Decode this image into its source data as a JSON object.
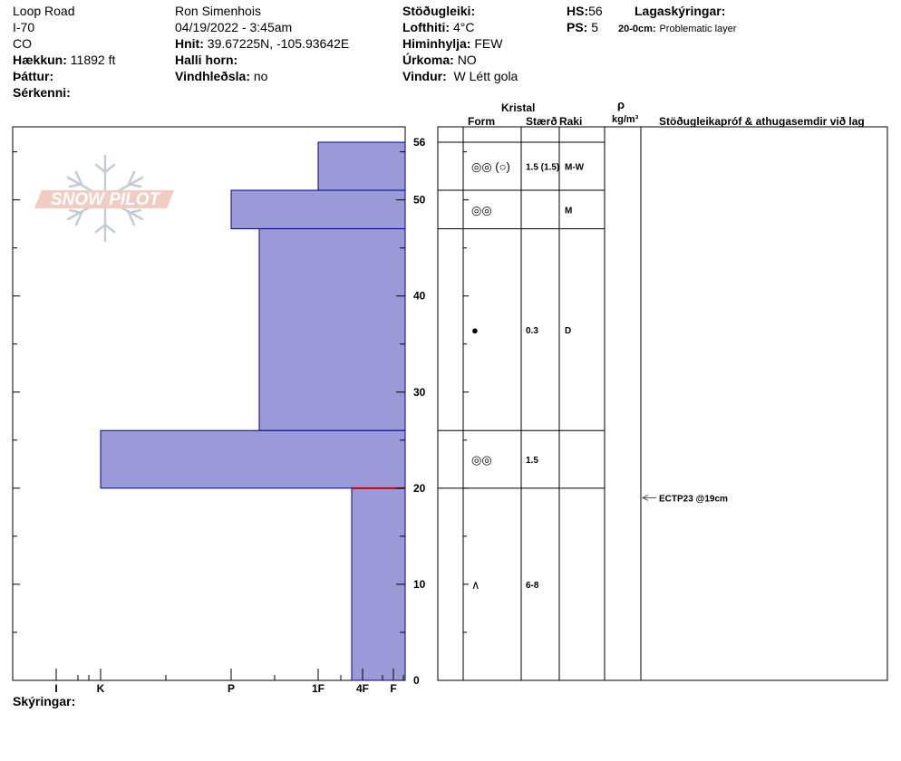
{
  "header": {
    "col1": {
      "location": "Loop Road",
      "road": "I-70",
      "state": "CO",
      "elevation_label": "Hækkun:",
      "elevation_value": "11892 ft",
      "aspect_label": "Þáttur:",
      "features_label": "Sérkenni:"
    },
    "col2": {
      "observer": "Ron Simenhois",
      "datetime": "04/19/2022 - 3:45am",
      "coords_label": "Hnit:",
      "coords_value": "39.67225N, -105.93642E",
      "slope_label": "Halli horn:",
      "wind_loading_label": "Vindhleðsla:",
      "wind_loading_value": "no"
    },
    "col3": {
      "stability_label": "Stöðugleiki:",
      "air_temp_label": "Lofthiti:",
      "air_temp_value": "4°C",
      "sky_label": "Himinhylja:",
      "sky_value": "FEW",
      "precip_label": "Úrkoma:",
      "precip_value": "NO",
      "wind_label": "Vindur:",
      "wind_value": "W Létt gola"
    },
    "col4": {
      "hs_label": "HS:",
      "hs_value": "56",
      "ps_label": "PS:",
      "ps_value": "5"
    },
    "legend": {
      "title": "Lagaskýringar:",
      "item_range": "20-0cm:",
      "item_text": "Problematic layer"
    }
  },
  "columns": {
    "crystal": "Kristal",
    "form": "Form",
    "size": "Stærð",
    "moisture": "Raki",
    "rho": "ρ",
    "density_unit": "kg/m³",
    "tests": "Stöðugleikapróf & athugasemdir við lag"
  },
  "footer": {
    "notes_label": "Skýringar:"
  },
  "logo": {
    "text": "SNOW PILOT"
  },
  "chart_data": {
    "type": "bar",
    "description_axis_y": "height (cm)",
    "y_ticks": [
      0,
      10,
      20,
      30,
      40,
      50,
      56
    ],
    "ylim": [
      0,
      56
    ],
    "x_hardness_ticks": [
      "I",
      "K",
      "P",
      "1F",
      "4F",
      "F"
    ],
    "colors": {
      "layer_fill": "#9a9ad8",
      "layer_stroke": "#00008b",
      "problem_line": "#cc0000"
    },
    "layers": [
      {
        "top": 56,
        "bottom": 51,
        "hardness": "1F",
        "form": "◎◎ (○)",
        "size": "1.5 (1.5)",
        "moisture": "M-W"
      },
      {
        "top": 51,
        "bottom": 47,
        "hardness": "P+",
        "form": "◎◎",
        "size": "",
        "moisture": "M"
      },
      {
        "top": 47,
        "bottom": 26,
        "hardness": "P-",
        "form": "●",
        "size": "0.3",
        "moisture": "D"
      },
      {
        "top": 26,
        "bottom": 20,
        "hardness": "K",
        "form": "◎◎",
        "size": "1.5",
        "moisture": ""
      },
      {
        "top": 20,
        "bottom": 0,
        "hardness": "4F+",
        "form": "∧",
        "size": "6-8",
        "moisture": ""
      }
    ],
    "tests": [
      {
        "height": 19,
        "text": "ECTP23 @19cm"
      }
    ]
  }
}
